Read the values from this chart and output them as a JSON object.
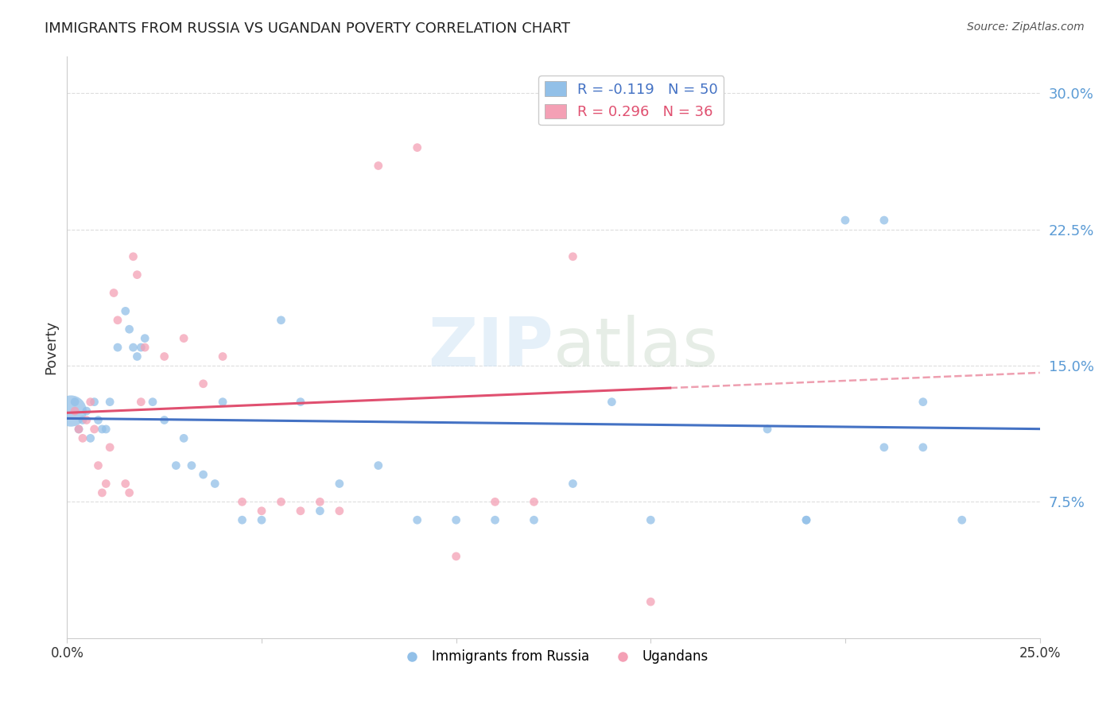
{
  "title": "IMMIGRANTS FROM RUSSIA VS UGANDAN POVERTY CORRELATION CHART",
  "source": "Source: ZipAtlas.com",
  "ylabel": "Poverty",
  "ytick_labels": [
    "7.5%",
    "15.0%",
    "22.5%",
    "30.0%"
  ],
  "ytick_values": [
    0.075,
    0.15,
    0.225,
    0.3
  ],
  "xlim": [
    0.0,
    0.25
  ],
  "ylim": [
    0.0,
    0.32
  ],
  "blue_color": "#92C0E8",
  "pink_color": "#F4A0B5",
  "blue_line_color": "#4472C4",
  "pink_line_color": "#E05070",
  "blue_scatter_x": [
    0.002,
    0.003,
    0.004,
    0.005,
    0.006,
    0.007,
    0.008,
    0.009,
    0.01,
    0.011,
    0.013,
    0.015,
    0.016,
    0.017,
    0.018,
    0.019,
    0.02,
    0.022,
    0.025,
    0.028,
    0.03,
    0.032,
    0.035,
    0.038,
    0.04,
    0.045,
    0.05,
    0.055,
    0.06,
    0.065,
    0.07,
    0.08,
    0.09,
    0.1,
    0.11,
    0.12,
    0.13,
    0.14,
    0.15,
    0.16,
    0.18,
    0.19,
    0.2,
    0.21,
    0.22,
    0.23,
    0.19,
    0.21,
    0.22,
    0.001
  ],
  "blue_scatter_y": [
    0.13,
    0.115,
    0.12,
    0.125,
    0.11,
    0.13,
    0.12,
    0.115,
    0.115,
    0.13,
    0.16,
    0.18,
    0.17,
    0.16,
    0.155,
    0.16,
    0.165,
    0.13,
    0.12,
    0.095,
    0.11,
    0.095,
    0.09,
    0.085,
    0.13,
    0.065,
    0.065,
    0.175,
    0.13,
    0.07,
    0.085,
    0.095,
    0.065,
    0.065,
    0.065,
    0.065,
    0.085,
    0.13,
    0.065,
    0.285,
    0.115,
    0.065,
    0.23,
    0.23,
    0.13,
    0.065,
    0.065,
    0.105,
    0.105,
    0.125
  ],
  "blue_scatter_size": [
    60,
    60,
    60,
    60,
    60,
    60,
    60,
    60,
    60,
    60,
    60,
    60,
    60,
    60,
    60,
    60,
    60,
    60,
    60,
    60,
    60,
    60,
    60,
    60,
    60,
    60,
    60,
    60,
    60,
    60,
    60,
    60,
    60,
    60,
    60,
    60,
    60,
    60,
    60,
    60,
    60,
    60,
    60,
    60,
    60,
    60,
    60,
    60,
    60,
    800
  ],
  "pink_scatter_x": [
    0.002,
    0.003,
    0.004,
    0.005,
    0.006,
    0.007,
    0.008,
    0.009,
    0.01,
    0.011,
    0.012,
    0.013,
    0.015,
    0.016,
    0.017,
    0.018,
    0.019,
    0.02,
    0.025,
    0.03,
    0.035,
    0.04,
    0.045,
    0.05,
    0.055,
    0.06,
    0.065,
    0.07,
    0.08,
    0.09,
    0.1,
    0.11,
    0.12,
    0.13,
    0.14,
    0.15
  ],
  "pink_scatter_y": [
    0.125,
    0.115,
    0.11,
    0.12,
    0.13,
    0.115,
    0.095,
    0.08,
    0.085,
    0.105,
    0.19,
    0.175,
    0.085,
    0.08,
    0.21,
    0.2,
    0.13,
    0.16,
    0.155,
    0.165,
    0.14,
    0.155,
    0.075,
    0.07,
    0.075,
    0.07,
    0.075,
    0.07,
    0.26,
    0.27,
    0.045,
    0.075,
    0.075,
    0.21,
    0.29,
    0.02
  ],
  "pink_scatter_size": [
    60,
    60,
    60,
    60,
    60,
    60,
    60,
    60,
    60,
    60,
    60,
    60,
    60,
    60,
    60,
    60,
    60,
    60,
    60,
    60,
    60,
    60,
    60,
    60,
    60,
    60,
    60,
    60,
    60,
    60,
    60,
    60,
    60,
    60,
    60,
    60
  ],
  "legend1_label": "R = -0.119   N = 50",
  "legend2_label": "R = 0.296   N = 36",
  "legend1_color": "#92C0E8",
  "legend2_color": "#F4A0B5",
  "watermark_zip": "ZIP",
  "watermark_atlas": "atlas",
  "grid_color": "#DDDDDD"
}
